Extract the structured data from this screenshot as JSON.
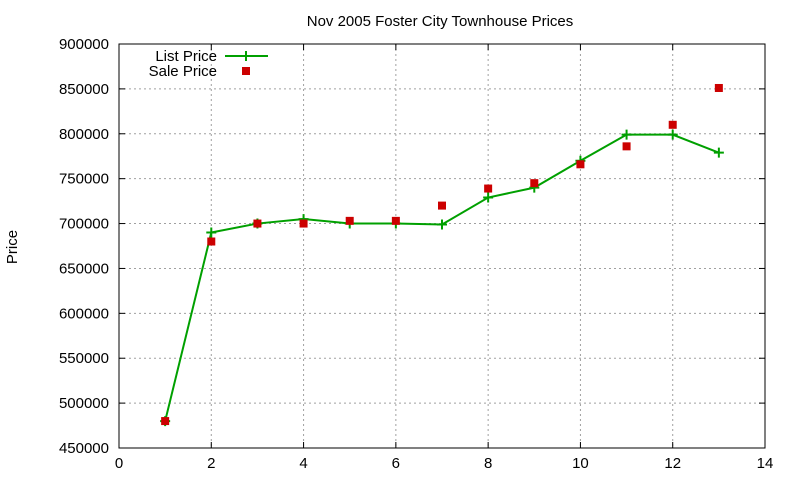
{
  "chart_data": {
    "type": "line",
    "title": "Nov 2005 Foster City Townhouse Prices",
    "xlabel": "",
    "ylabel": "Price",
    "xlim": [
      0,
      14
    ],
    "ylim": [
      450000,
      900000
    ],
    "xticks": [
      0,
      2,
      4,
      6,
      8,
      10,
      12,
      14
    ],
    "yticks": [
      450000,
      500000,
      550000,
      600000,
      650000,
      700000,
      750000,
      800000,
      850000,
      900000
    ],
    "grid": true,
    "legend_position": "top-left",
    "series": [
      {
        "name": "List Price",
        "style": "line-plus",
        "color": "#00a000",
        "x": [
          1,
          2,
          3,
          4,
          5,
          6,
          7,
          8,
          9,
          10,
          11,
          12,
          13
        ],
        "y": [
          480000,
          690000,
          700000,
          705000,
          700000,
          700000,
          699000,
          729000,
          740000,
          770000,
          799000,
          799000,
          779000
        ]
      },
      {
        "name": "Sale Price",
        "style": "square-points",
        "color": "#cc0000",
        "x": [
          1,
          2,
          3,
          4,
          5,
          6,
          7,
          8,
          9,
          10,
          11,
          12,
          13
        ],
        "y": [
          480000,
          680000,
          700000,
          700000,
          703000,
          703000,
          720000,
          739000,
          745000,
          766000,
          786000,
          810000,
          851000
        ]
      }
    ]
  }
}
